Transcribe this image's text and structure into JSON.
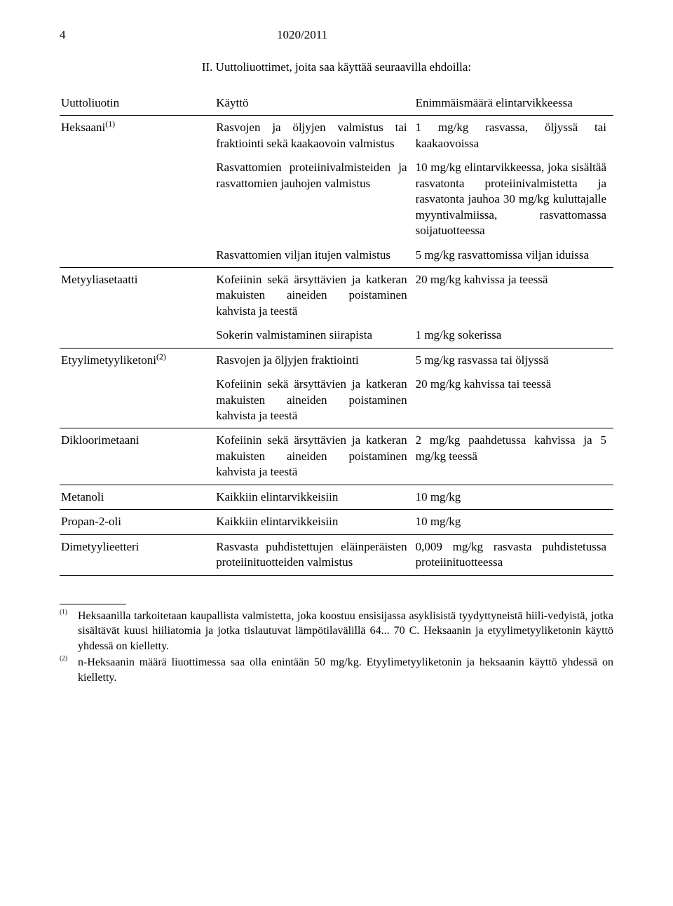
{
  "header": {
    "page_number": "4",
    "doc_reference": "1020/2011"
  },
  "section_heading": "II. Uuttoliuottimet, joita saa käyttää seuraavilla ehdoilla:",
  "table": {
    "headers": {
      "col_a": "Uuttoliuotin",
      "col_b": "Käyttö",
      "col_c": "Enimmäismäärä elintarvikkeessa"
    },
    "rows": [
      {
        "a": "Heksaani",
        "a_sup": "(1)",
        "b": "Rasvojen ja öljyjen valmistus tai fraktiointi sekä kaakaovoin valmistus",
        "c": "1 mg/kg rasvassa, öljyssä tai kaakaovoissa",
        "sep": false
      },
      {
        "a": "",
        "a_sup": "",
        "b": "Rasvattomien proteiinivalmisteiden ja rasvattomien jauhojen valmistus",
        "c": "10 mg/kg elintarvikkeessa, joka sisältää rasvatonta proteiinivalmistetta ja rasvatonta jauhoa 30 mg/kg kuluttajalle myyntivalmiissa, rasvattomassa soijatuotteessa",
        "sep": false
      },
      {
        "a": "",
        "a_sup": "",
        "b": "Rasvattomien viljan itujen valmistus",
        "c": "5 mg/kg rasvattomissa viljan iduissa",
        "sep": true
      },
      {
        "a": "Metyyliasetaatti",
        "a_sup": "",
        "b": "Kofeiinin sekä ärsyttävien ja katkeran makuisten aineiden poistaminen kahvista ja teestä",
        "c": "20 mg/kg kahvissa ja teessä",
        "sep": false
      },
      {
        "a": "",
        "a_sup": "",
        "b": "Sokerin valmistaminen siirapista",
        "c": "1 mg/kg sokerissa",
        "sep": true
      },
      {
        "a": "Etyylimetyyliketoni",
        "a_sup": "(2)",
        "b": "Rasvojen ja öljyjen fraktiointi",
        "c": "5 mg/kg rasvassa tai öljyssä",
        "sep": false
      },
      {
        "a": "",
        "a_sup": "",
        "b": "Kofeiinin sekä ärsyttävien ja katkeran makuisten aineiden poistaminen kahvista ja teestä",
        "c": "20 mg/kg kahvissa tai teessä",
        "sep": true
      },
      {
        "a": "Dikloorimetaani",
        "a_sup": "",
        "b": "Kofeiinin sekä ärsyttävien ja katkeran makuisten aineiden poistaminen kahvista ja teestä",
        "c": "2 mg/kg paahdetussa kahvissa ja 5 mg/kg teessä",
        "sep": true
      },
      {
        "a": "Metanoli",
        "a_sup": "",
        "b": "Kaikkiin elintarvikkeisiin",
        "c": "10 mg/kg",
        "sep": true
      },
      {
        "a": "Propan-2-oli",
        "a_sup": "",
        "b": "Kaikkiin elintarvikkeisiin",
        "c": "10 mg/kg",
        "sep": true
      },
      {
        "a": "Dimetyylieetteri",
        "a_sup": "",
        "b": "Rasvasta puhdistettujen eläinperäisten proteiinituotteiden valmistus",
        "c": "0,009 mg/kg rasvasta puhdistetussa proteiinituotteessa",
        "sep": true
      }
    ]
  },
  "footnotes": [
    {
      "mark": "(1)",
      "text": "Heksaanilla tarkoitetaan kaupallista valmistetta, joka koostuu ensisijassa asyklisistä tyydyttyneistä hiili-vedyistä, jotka sisältävät kuusi hiiliatomia ja jotka tislautuvat lämpötilavälillä 64... 70 C. Heksaanin ja etyylimetyyliketonin käyttö yhdessä on kielletty."
    },
    {
      "mark": "(2)",
      "text": "n-Heksaanin määrä liuottimessa saa olla enintään 50 mg/kg. Etyylimetyyliketonin ja heksaanin käyttö yhdessä on kielletty."
    }
  ]
}
